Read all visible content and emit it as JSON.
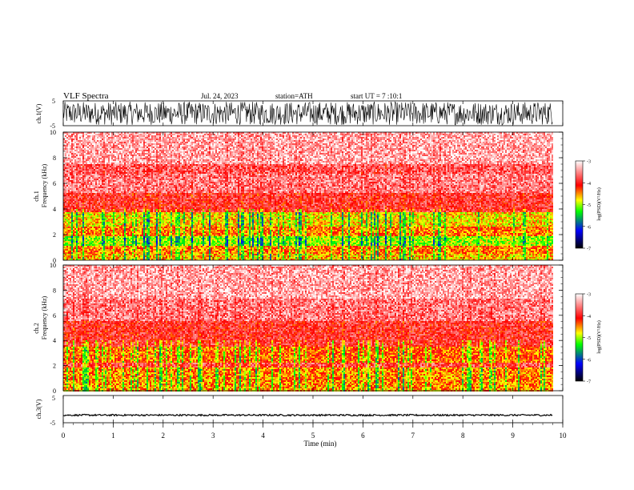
{
  "header": {
    "title": "VLF  Spectra",
    "date": "Jul.  24, 2023",
    "station": "station=ATH",
    "start_ut": "start  UT  =    7  :10:1"
  },
  "colors": {
    "background": "#ffffff",
    "trace": "#000000",
    "colormap": [
      "#000000",
      "#0000ff",
      "#00ff00",
      "#ffff00",
      "#ff0000",
      "#ffffff"
    ]
  },
  "chart_data": [
    {
      "id": "ch1-waveform",
      "type": "line",
      "ylabel": "ch.1(V)",
      "ylim": [
        -5,
        5
      ],
      "y_ticks": [
        "5",
        "-5"
      ],
      "xlim": [
        0,
        10
      ],
      "amplitude_envelope": 4.7,
      "description_of_values": "noise-like waveform filling nearly full +/-5 V range over 0-9.8 min"
    },
    {
      "id": "ch1-spectrogram",
      "type": "heatmap",
      "ylabel_line1": "ch.1",
      "ylabel_line2": "Frequency  (kHz)",
      "ylim": [
        0,
        10
      ],
      "y_ticks": [
        "0",
        "2",
        "4",
        "6",
        "8",
        "10"
      ],
      "xlim": [
        0,
        10
      ],
      "data_extent_min": 9.8,
      "colorbar": {
        "label": "log(PSD)(V²/Hz)",
        "ticks": [
          "-3",
          "-4",
          "-5",
          "-6",
          "-7"
        ],
        "range": [
          -7,
          -3
        ]
      },
      "bands": [
        {
          "from": 0.0,
          "to": 0.5,
          "level": -4.6
        },
        {
          "from": 0.5,
          "to": 1.1,
          "level": -4.4
        },
        {
          "from": 1.1,
          "to": 1.9,
          "level": -5.0
        },
        {
          "from": 1.9,
          "to": 2.6,
          "level": -4.4
        },
        {
          "from": 2.6,
          "to": 3.7,
          "level": -4.7
        },
        {
          "from": 3.7,
          "to": 5.3,
          "level": -3.9
        },
        {
          "from": 5.3,
          "to": 6.8,
          "level": -3.55
        },
        {
          "from": 6.8,
          "to": 7.5,
          "level": -3.7
        },
        {
          "from": 7.5,
          "to": 10.0,
          "level": -3.35
        }
      ]
    },
    {
      "id": "ch2-spectrogram",
      "type": "heatmap",
      "ylabel_line1": "ch.2",
      "ylabel_line2": "Frequency  (kHz)",
      "ylim": [
        0,
        10
      ],
      "y_ticks": [
        "0",
        "2",
        "4",
        "6",
        "8",
        "10"
      ],
      "xlim": [
        0,
        10
      ],
      "data_extent_min": 9.8,
      "colorbar": {
        "label": "log(PSD)(V²/Hz)",
        "ticks": [
          "-3",
          "-4",
          "-5",
          "-6",
          "-7"
        ],
        "range": [
          -7,
          -3
        ]
      },
      "bands": [
        {
          "from": 0.0,
          "to": 0.4,
          "level": -4.5
        },
        {
          "from": 0.4,
          "to": 1.8,
          "level": -4.45
        },
        {
          "from": 1.8,
          "to": 2.2,
          "level": -3.8
        },
        {
          "from": 2.2,
          "to": 3.5,
          "level": -4.35
        },
        {
          "from": 3.5,
          "to": 5.5,
          "level": -3.9
        },
        {
          "from": 5.5,
          "to": 7.3,
          "level": -3.55
        },
        {
          "from": 7.3,
          "to": 10.0,
          "level": -3.35
        }
      ]
    },
    {
      "id": "ch3-waveform",
      "type": "line",
      "ylabel": "ch.3(V)",
      "ylim": [
        -5,
        5
      ],
      "y_ticks": [
        "5",
        "-5"
      ],
      "xlim": [
        0,
        10
      ],
      "mean_level": -2.2,
      "amplitude_envelope": 0.3,
      "description_of_values": "near-flat trace around -2.2 V over 0-9.8 min"
    }
  ],
  "x_axis": {
    "label": "Time  (min)",
    "ticks": [
      "0",
      "1",
      "2",
      "3",
      "4",
      "5",
      "6",
      "7",
      "8",
      "9",
      "10"
    ],
    "range": [
      0,
      10
    ]
  }
}
